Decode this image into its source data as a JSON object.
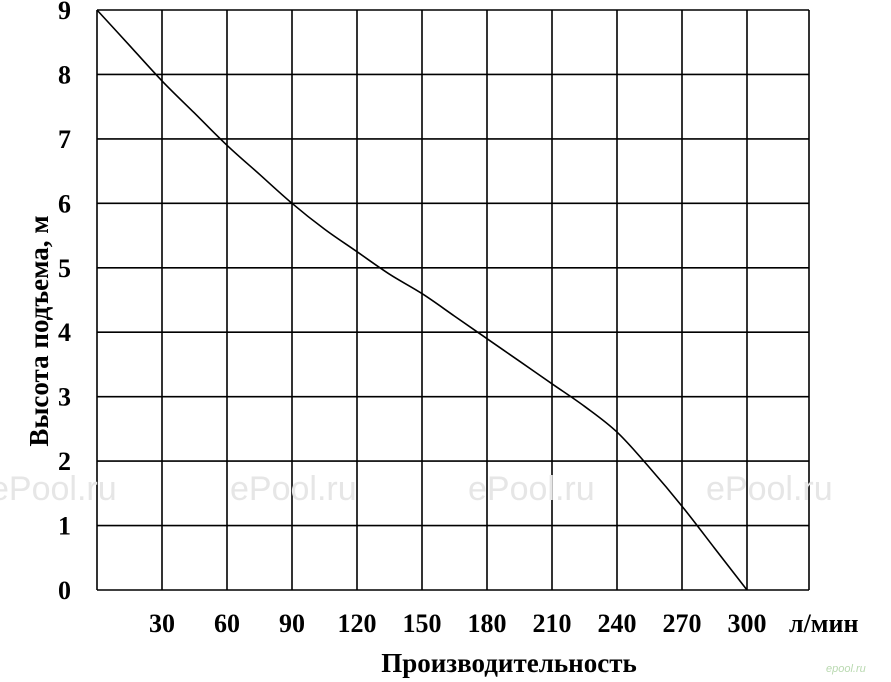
{
  "chart_data": {
    "type": "line",
    "xlabel": "Производительность",
    "ylabel": "Высота подъема, м",
    "x_unit_label": "л/мин",
    "x_ticks": [
      "30",
      "60",
      "90",
      "120",
      "150",
      "180",
      "210",
      "240",
      "270",
      "300"
    ],
    "y_ticks": [
      "0",
      "1",
      "2",
      "3",
      "4",
      "5",
      "6",
      "7",
      "8",
      "9"
    ],
    "xlim": [
      0,
      300
    ],
    "ylim": [
      0,
      9
    ],
    "grid": true,
    "series": [
      {
        "x": [
          0,
          15,
          30,
          45,
          60,
          75,
          90,
          105,
          120,
          135,
          150,
          165,
          180,
          195,
          210,
          225,
          240,
          255,
          270,
          285,
          300
        ],
        "y": [
          9,
          8.45,
          7.9,
          7.4,
          6.9,
          6.45,
          6.0,
          5.6,
          5.25,
          4.9,
          4.6,
          4.25,
          3.9,
          3.55,
          3.2,
          2.85,
          2.45,
          1.9,
          1.3,
          0.65,
          0
        ],
        "color": "#000000"
      }
    ]
  },
  "watermarks": {
    "repeat_text": "ePool.ru",
    "corner_text": "epool.ru"
  }
}
